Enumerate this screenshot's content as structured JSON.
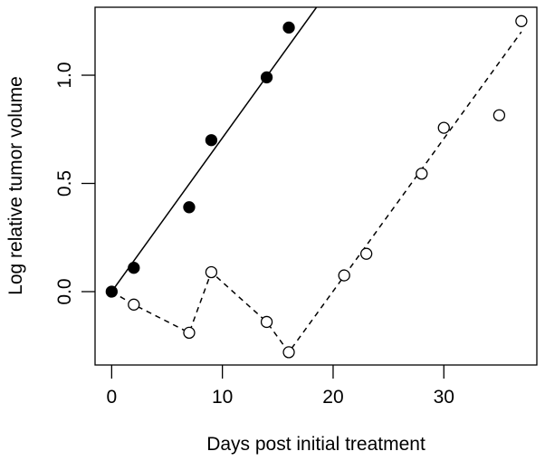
{
  "chart_data": {
    "type": "scatter",
    "title": "",
    "xlabel": "Days post initial treatment",
    "ylabel": "Log relative tumor volume",
    "xlim": [
      -1.5,
      38.4
    ],
    "ylim": [
      -0.339,
      1.314
    ],
    "xticks": [
      0,
      10,
      20,
      30
    ],
    "yticks": [
      0.0,
      0.5,
      1.0
    ],
    "ytick_labels": [
      "0.0",
      "0.5",
      "1.0"
    ],
    "grid": false,
    "series": [
      {
        "marker": "filled-circle",
        "x": [
          0,
          2,
          7,
          9,
          14,
          16
        ],
        "y": [
          0,
          0.11,
          0.39,
          0.7,
          0.99,
          1.22
        ]
      },
      {
        "marker": "open-circle",
        "x": [
          2,
          7,
          9,
          14,
          16,
          21,
          23,
          28,
          30,
          35,
          37
        ],
        "y": [
          -0.06,
          -0.19,
          0.09,
          -0.14,
          -0.28,
          0.075,
          0.175,
          0.545,
          0.757,
          0.815,
          1.25
        ]
      }
    ],
    "lines": [
      {
        "style": "solid",
        "points": [
          [
            0,
            0
          ],
          [
            18.5,
            1.314
          ]
        ]
      },
      {
        "style": "dashed",
        "points": [
          [
            0,
            0
          ],
          [
            2,
            -0.06
          ],
          [
            7,
            -0.19
          ],
          [
            9,
            0.09
          ],
          [
            14,
            -0.14
          ],
          [
            16,
            -0.28
          ],
          [
            37,
            1.2
          ]
        ]
      }
    ],
    "colors": {
      "ink": "#000000"
    }
  }
}
